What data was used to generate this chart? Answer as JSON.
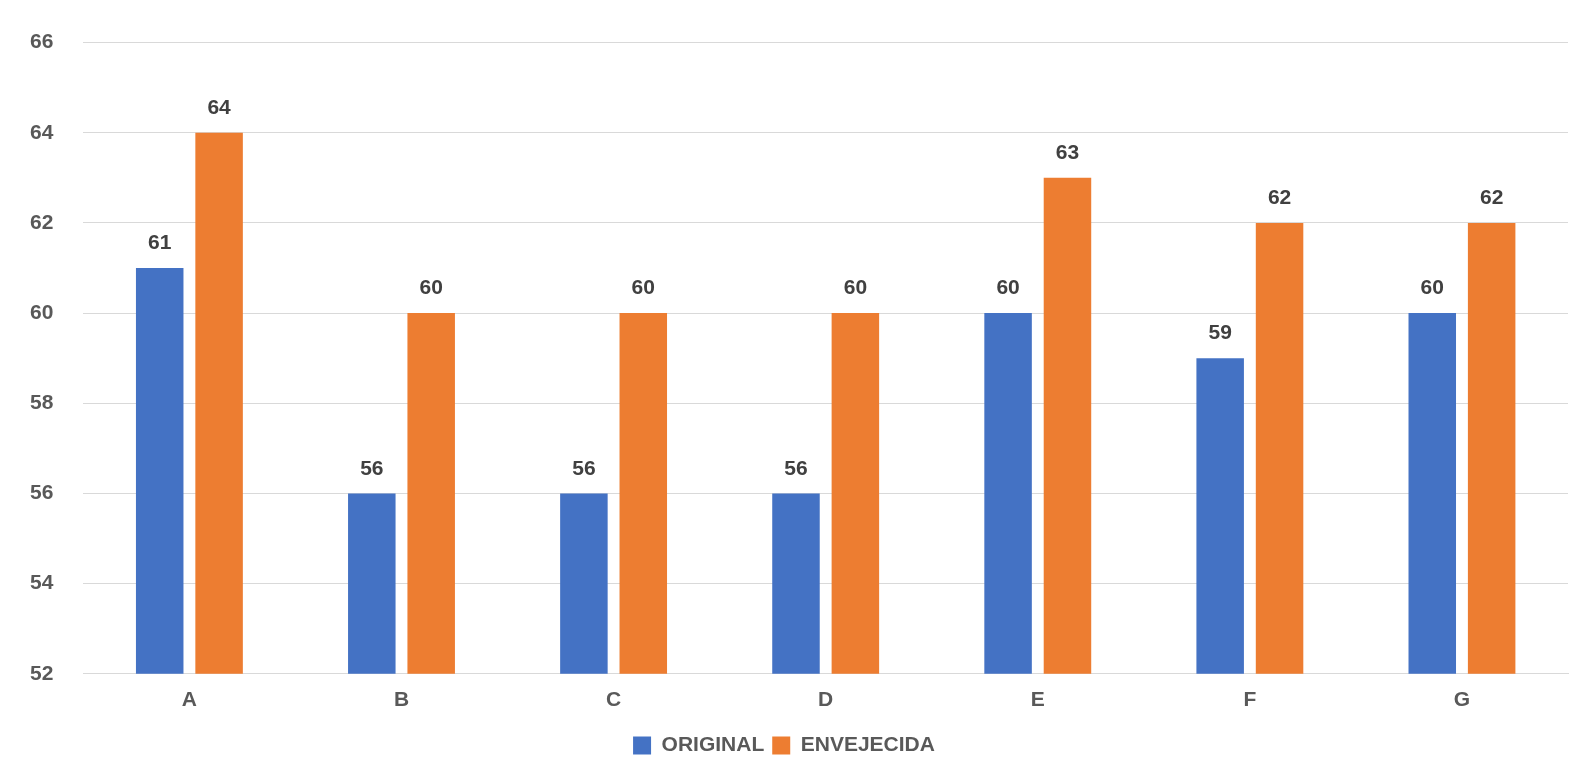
{
  "chart_data": {
    "type": "bar",
    "categories": [
      "A",
      "B",
      "C",
      "D",
      "E",
      "F",
      "G"
    ],
    "series": [
      {
        "name": "ORIGINAL",
        "color": "#4472c4",
        "values": [
          61,
          56,
          56,
          56,
          60,
          59,
          60
        ]
      },
      {
        "name": "ENVEJECIDA",
        "color": "#ed7d31",
        "values": [
          64,
          60,
          60,
          60,
          63,
          62,
          62
        ]
      }
    ],
    "ylim": [
      52,
      66
    ],
    "yticks": [
      52,
      54,
      56,
      58,
      60,
      62,
      64,
      66
    ],
    "grid": "y",
    "legend": "bottom",
    "data_labels": true
  }
}
